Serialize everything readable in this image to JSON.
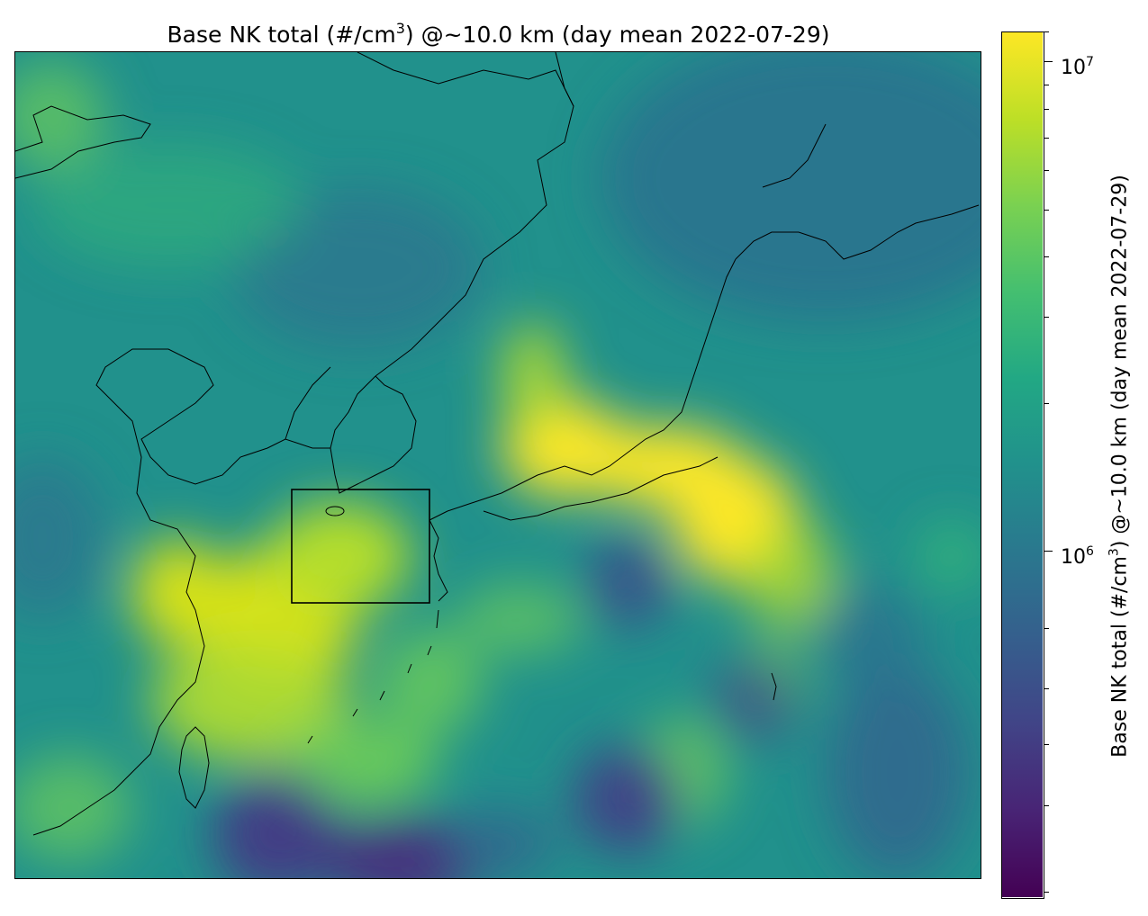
{
  "title": {
    "prefix": "Base NK total (#/cm",
    "exponent": "3",
    "suffix": ") @~10.0 km (day mean 2022-07-29)"
  },
  "colorbar": {
    "label_prefix": "Base NK total (#/cm",
    "label_exponent": "3",
    "label_suffix": ") @~10.0 km (day mean 2022-07-29)",
    "scale": "log",
    "colormap": "viridis",
    "range": [
      230000,
      11500000
    ],
    "tick_values": [
      1000000,
      10000000
    ],
    "tick_bases": [
      "10",
      "10"
    ],
    "tick_exponents": [
      "6",
      "7"
    ]
  },
  "map": {
    "region": "East Asia (China coast, Korea, Japan, Taiwan, Western Pacific)",
    "highlight_box": "rectangle over Tsushima Strait / East China Sea",
    "colors": {
      "land_outline": "#000000",
      "box": "#000000"
    }
  }
}
